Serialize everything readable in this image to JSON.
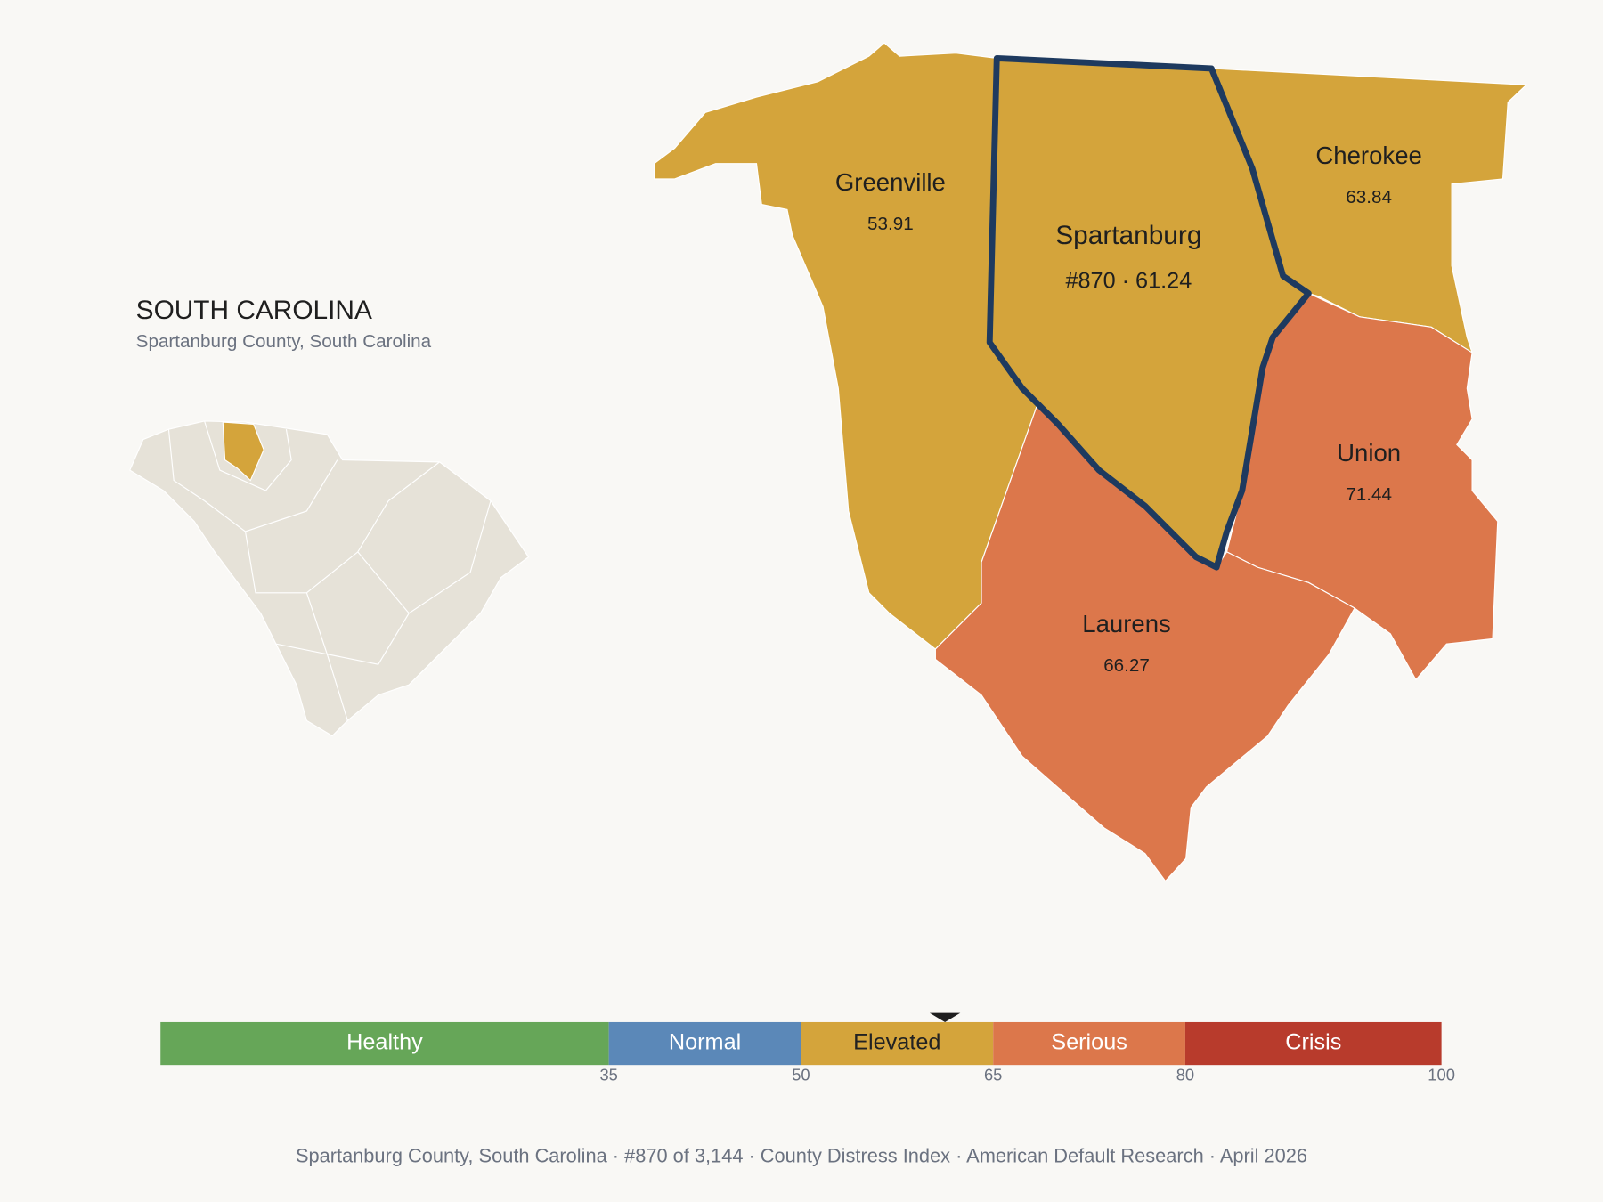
{
  "title": "SOUTH CAROLINA",
  "subtitle": "Spartanburg County, South Carolina",
  "counties": [
    {
      "name": "Greenville",
      "value": 53.91
    },
    {
      "name": "Spartanburg",
      "value": 61.24,
      "value_label": "#870 · 61.24",
      "selected": true
    },
    {
      "name": "Cherokee",
      "value": 63.84
    },
    {
      "name": "Union",
      "value": 71.44
    },
    {
      "name": "Laurens",
      "value": 66.27
    }
  ],
  "scale": {
    "xlim": [
      0,
      100
    ],
    "bands": [
      {
        "name": "Healthy",
        "color": "#66a658",
        "text_color": "#ffffff"
      },
      {
        "name": "Normal",
        "color": "#5b88b8",
        "text_color": "#ffffff"
      },
      {
        "name": "Elevated",
        "color": "#d4a43b",
        "text_color": "#222222"
      },
      {
        "name": "Serious",
        "color": "#dc774b",
        "text_color": "#ffffff"
      },
      {
        "name": "Crisis",
        "color": "#b83b2c",
        "text_color": "#ffffff"
      }
    ],
    "xticks": [
      35,
      50,
      65,
      80,
      100
    ]
  },
  "footer": "Spartanburg County, South Carolina  ·  #870 of 3,144  ·  County Distress Index  ·  American Default Research  ·  April 2026"
}
